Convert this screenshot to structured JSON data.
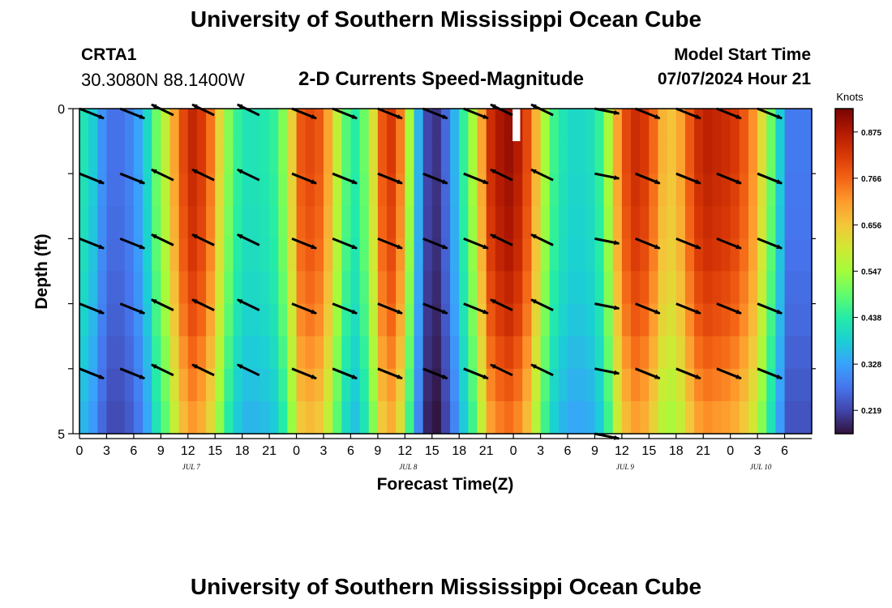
{
  "header": {
    "title": "University of Southern Mississippi Ocean Cube",
    "station_id": "CRTA1",
    "station_coords": "30.3080N  88.1400W",
    "plot_title": "2-D Currents Speed-Magnitude",
    "start_label": "Model Start Time",
    "start_value": "07/07/2024 Hour 21"
  },
  "footer": {
    "title": "University of Southern Mississippi Ocean Cube"
  },
  "chart_data": {
    "type": "heatmap",
    "title": "2-D Currents Speed-Magnitude",
    "xlabel": "Forecast Time(Z)",
    "ylabel": "Depth (ft)",
    "xlim_hours": [
      0,
      81
    ],
    "ylim_depth_ft": [
      0,
      5
    ],
    "y_tick_labels": [
      "0",
      "5"
    ],
    "x_ticks": [
      {
        "h": 0,
        "label": "0"
      },
      {
        "h": 3,
        "label": "3"
      },
      {
        "h": 6,
        "label": "6"
      },
      {
        "h": 9,
        "label": "9"
      },
      {
        "h": 12,
        "label": "12"
      },
      {
        "h": 15,
        "label": "15"
      },
      {
        "h": 18,
        "label": "18"
      },
      {
        "h": 21,
        "label": "21"
      },
      {
        "h": 24,
        "label": "0"
      },
      {
        "h": 27,
        "label": "3"
      },
      {
        "h": 30,
        "label": "6"
      },
      {
        "h": 33,
        "label": "9"
      },
      {
        "h": 36,
        "label": "12"
      },
      {
        "h": 39,
        "label": "15"
      },
      {
        "h": 42,
        "label": "18"
      },
      {
        "h": 45,
        "label": "21"
      },
      {
        "h": 48,
        "label": "0"
      },
      {
        "h": 51,
        "label": "3"
      },
      {
        "h": 54,
        "label": "6"
      },
      {
        "h": 57,
        "label": "9"
      },
      {
        "h": 60,
        "label": "12"
      },
      {
        "h": 63,
        "label": "15"
      },
      {
        "h": 66,
        "label": "18"
      },
      {
        "h": 69,
        "label": "21"
      },
      {
        "h": 72,
        "label": "0"
      },
      {
        "h": 75,
        "label": "3"
      },
      {
        "h": 78,
        "label": "6"
      }
    ],
    "date_labels": [
      {
        "h": 12,
        "label": "JUL 7"
      },
      {
        "h": 36,
        "label": "JUL 8"
      },
      {
        "h": 60,
        "label": "JUL 9"
      },
      {
        "h": 75,
        "label": "JUL 10"
      }
    ],
    "colorbar": {
      "title": "Knots",
      "min": 0.164,
      "max": 0.93,
      "ticks": [
        0.219,
        0.328,
        0.438,
        0.547,
        0.656,
        0.766,
        0.875
      ],
      "tick_labels": [
        "0.219",
        "0.328",
        "0.438",
        "0.547",
        "0.656",
        "0.766",
        "0.875"
      ],
      "colors": [
        "#30123b",
        "#4145ab",
        "#4675ed",
        "#39a2fc",
        "#1bcfd4",
        "#24eca6",
        "#61fc6c",
        "#a4fc3b",
        "#d1e834",
        "#f3c63a",
        "#fe9b2d",
        "#f36315",
        "#d93806",
        "#b11901",
        "#7a0403"
      ]
    },
    "speed_profile": {
      "hours": [
        0,
        1,
        2,
        3,
        4,
        5,
        6,
        7,
        8,
        9,
        10,
        11,
        12,
        13,
        14,
        15,
        16,
        17,
        18,
        19,
        20,
        21,
        22,
        23,
        24,
        25,
        26,
        27,
        28,
        29,
        30,
        31,
        32,
        33,
        34,
        35,
        36,
        37,
        38,
        39,
        40,
        41,
        42,
        43,
        44,
        45,
        46,
        47,
        48,
        49,
        50,
        51,
        52,
        53,
        54,
        55,
        56,
        57,
        58,
        59,
        60,
        61,
        62,
        63,
        64,
        65,
        66,
        67,
        68,
        69,
        70,
        71,
        72,
        73,
        74,
        75,
        76,
        77,
        78
      ],
      "knots": [
        0.42,
        0.38,
        0.31,
        0.27,
        0.27,
        0.29,
        0.33,
        0.4,
        0.5,
        0.58,
        0.7,
        0.8,
        0.85,
        0.82,
        0.75,
        0.63,
        0.52,
        0.45,
        0.42,
        0.42,
        0.43,
        0.45,
        0.52,
        0.64,
        0.78,
        0.8,
        0.78,
        0.7,
        0.58,
        0.48,
        0.44,
        0.5,
        0.62,
        0.78,
        0.82,
        0.74,
        0.55,
        0.35,
        0.22,
        0.2,
        0.26,
        0.35,
        0.45,
        0.55,
        0.7,
        0.84,
        0.88,
        0.9,
        0.87,
        0.8,
        0.68,
        0.55,
        0.46,
        0.42,
        0.4,
        0.4,
        0.41,
        0.45,
        0.55,
        0.7,
        0.8,
        0.84,
        0.82,
        0.76,
        0.68,
        0.66,
        0.7,
        0.78,
        0.84,
        0.86,
        0.85,
        0.84,
        0.82,
        0.78,
        0.72,
        0.62,
        0.5,
        0.38,
        0.28
      ]
    },
    "depth_factor": [
      1.0,
      1.0,
      0.99,
      0.98,
      0.97,
      0.95,
      0.93,
      0.9,
      0.87,
      0.84
    ],
    "missing_cells": [
      {
        "hour": 48,
        "depth_ft": [
          0,
          0.5
        ]
      }
    ],
    "vector_arrows": {
      "depths_ft": [
        0,
        1,
        2,
        3,
        4,
        5
      ],
      "columns": [
        {
          "hour": 0,
          "dir": "ESE"
        },
        {
          "hour": 4.5,
          "dir": "ESE"
        },
        {
          "hour": 9.5,
          "dir": "WNW"
        },
        {
          "hour": 14,
          "dir": "WNW"
        },
        {
          "hour": 19,
          "dir": "WNW"
        },
        {
          "hour": 23.5,
          "dir": "ESE"
        },
        {
          "hour": 28,
          "dir": "ESE"
        },
        {
          "hour": 33,
          "dir": "ESE"
        },
        {
          "hour": 38,
          "dir": "ESE"
        },
        {
          "hour": 42.5,
          "dir": "ESE"
        },
        {
          "hour": 47,
          "dir": "WNW"
        },
        {
          "hour": 51.5,
          "dir": "WNW"
        },
        {
          "hour": 57,
          "dir": "E"
        },
        {
          "hour": 61.5,
          "dir": "ESE"
        },
        {
          "hour": 66,
          "dir": "ESE"
        },
        {
          "hour": 70.5,
          "dir": "ESE"
        },
        {
          "hour": 75,
          "dir": "ESE"
        }
      ]
    }
  }
}
